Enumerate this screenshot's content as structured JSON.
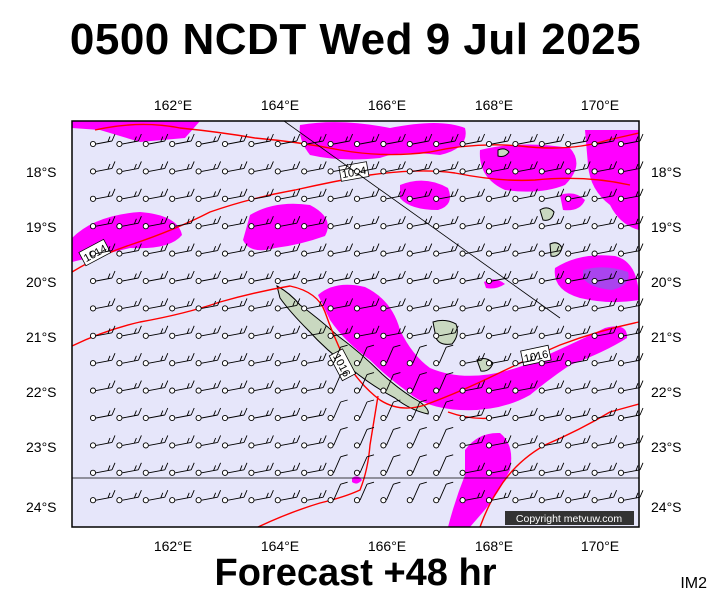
{
  "header": {
    "title": "0500 NCDT Wed 9 Jul 2025"
  },
  "footer": {
    "forecast_label": "Forecast +48 hr",
    "product_code": "IM2"
  },
  "map": {
    "longitude_ticks": [
      "162°E",
      "164°E",
      "166°E",
      "168°E",
      "170°E"
    ],
    "latitude_ticks": [
      "18°S",
      "19°S",
      "20°S",
      "21°S",
      "22°S",
      "23°S",
      "24°S"
    ],
    "isobar_labels": [
      "1014",
      "1014",
      "1016",
      "1016"
    ],
    "copyright": "Copyright metvuw.com",
    "colors": {
      "background": "#e6e6fa",
      "precip": "#ff00ff",
      "precip_heavy": "#aa44ee",
      "isobar": "#ff0000",
      "land": "#c9d8c0"
    }
  }
}
